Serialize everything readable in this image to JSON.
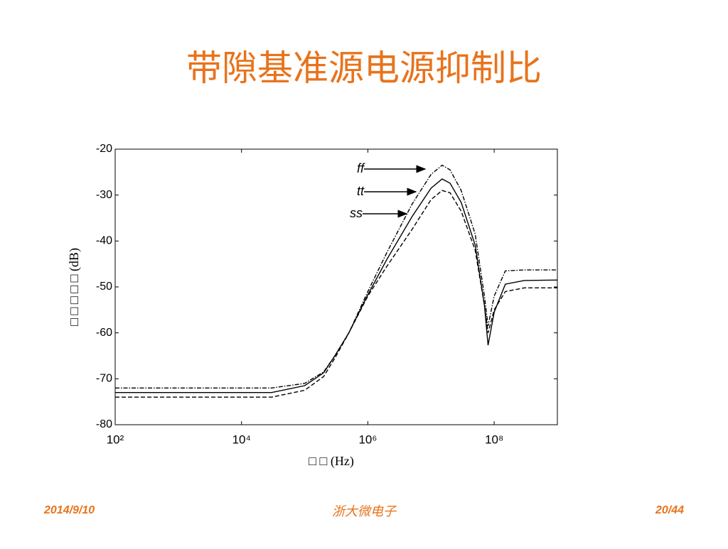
{
  "slide_title": "带隙基准源电源抑制比",
  "chart_data": {
    "type": "line",
    "xlabel": "□ □ (Hz)",
    "ylabel": "□ □ □ □ □ (dB)",
    "xscale": "log",
    "xlim": [
      100,
      1000000000
    ],
    "xticks": [
      {
        "value": 100,
        "label": "10²"
      },
      {
        "value": 10000,
        "label": "10⁴"
      },
      {
        "value": 1000000,
        "label": "10⁶"
      },
      {
        "value": 100000000,
        "label": "10⁸"
      }
    ],
    "ylim": [
      -80,
      -20
    ],
    "yticks": [
      -20,
      -30,
      -40,
      -50,
      -60,
      -70,
      -80
    ],
    "x": [
      100,
      1000,
      10000,
      30000,
      100000,
      200000,
      300000,
      500000,
      1000000,
      2000000,
      5000000,
      10000000,
      15000000,
      20000000,
      30000000,
      50000000,
      70000000,
      80000000,
      100000000,
      150000000,
      300000000,
      1000000000
    ],
    "series": [
      {
        "name": "ff",
        "color": "#000000",
        "dash": "dashdot",
        "values": [
          -72,
          -72,
          -72,
          -72,
          -71,
          -68.5,
          -65,
          -60,
          -51,
          -42.5,
          -32,
          -25.5,
          -23.5,
          -24.5,
          -29,
          -38.5,
          -52,
          -58.5,
          -52,
          -46.5,
          -46.3,
          -46.3
        ]
      },
      {
        "name": "tt",
        "color": "#000000",
        "dash": "solid",
        "values": [
          -73,
          -73,
          -73,
          -73,
          -71.5,
          -68.7,
          -65,
          -60,
          -51.7,
          -44,
          -34.7,
          -28.5,
          -26.5,
          -27.4,
          -31.6,
          -40.9,
          -54,
          -62.7,
          -55.5,
          -49.4,
          -48.6,
          -48.5
        ]
      },
      {
        "name": "ss",
        "color": "#000000",
        "dash": "dashed",
        "values": [
          -74,
          -74,
          -74,
          -74,
          -72.5,
          -69.5,
          -65.5,
          -60,
          -52,
          -45.5,
          -37.5,
          -31,
          -29,
          -29.5,
          -33.5,
          -42,
          -54,
          -60,
          -55,
          -51,
          -50.2,
          -50.2
        ]
      }
    ]
  },
  "footer": {
    "date": "2014/9/10",
    "org": "浙大微电子",
    "page": "20/44"
  }
}
